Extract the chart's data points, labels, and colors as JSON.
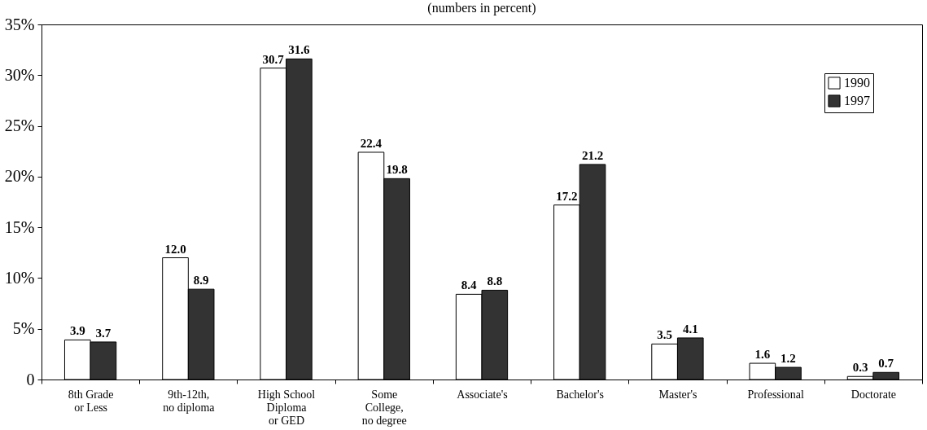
{
  "chart_data": {
    "type": "bar",
    "subtitle": "(numbers in percent)",
    "categories": [
      "8th Grade\nor Less",
      "9th-12th,\nno diploma",
      "High School\nDiploma\nor GED",
      "Some\nCollege,\nno degree",
      "Associate's",
      "Bachelor's",
      "Master's",
      "Professional",
      "Doctorate"
    ],
    "series": [
      {
        "name": "1990",
        "color": "#ffffff",
        "values": [
          3.9,
          12.0,
          30.7,
          22.4,
          8.4,
          17.2,
          3.5,
          1.6,
          0.3
        ],
        "value_labels": [
          "3.9",
          "12.0",
          "30.7",
          "22.4",
          "8.4",
          "17.2",
          "3.5",
          "1.6",
          "0.3"
        ]
      },
      {
        "name": "1997",
        "color": "#333333",
        "values": [
          3.7,
          8.9,
          31.6,
          19.8,
          8.8,
          21.2,
          4.1,
          1.2,
          0.7
        ],
        "value_labels": [
          "3.7",
          "8.9",
          "31.6",
          "19.8",
          "8.8",
          "21.2",
          "4.1",
          "1.2",
          "0.7"
        ]
      }
    ],
    "ylim": [
      0,
      35
    ],
    "yticks": [
      0,
      {
        "value": 5,
        "label": "5%"
      },
      {
        "value": 10,
        "label": "10%"
      },
      {
        "value": 15,
        "label": "15%"
      },
      {
        "value": 20,
        "label": "20%"
      },
      {
        "value": 25,
        "label": "25%"
      },
      {
        "value": 30,
        "label": "30%"
      },
      {
        "value": 35,
        "label": "35%"
      }
    ],
    "grid": false,
    "legend": "top right"
  }
}
